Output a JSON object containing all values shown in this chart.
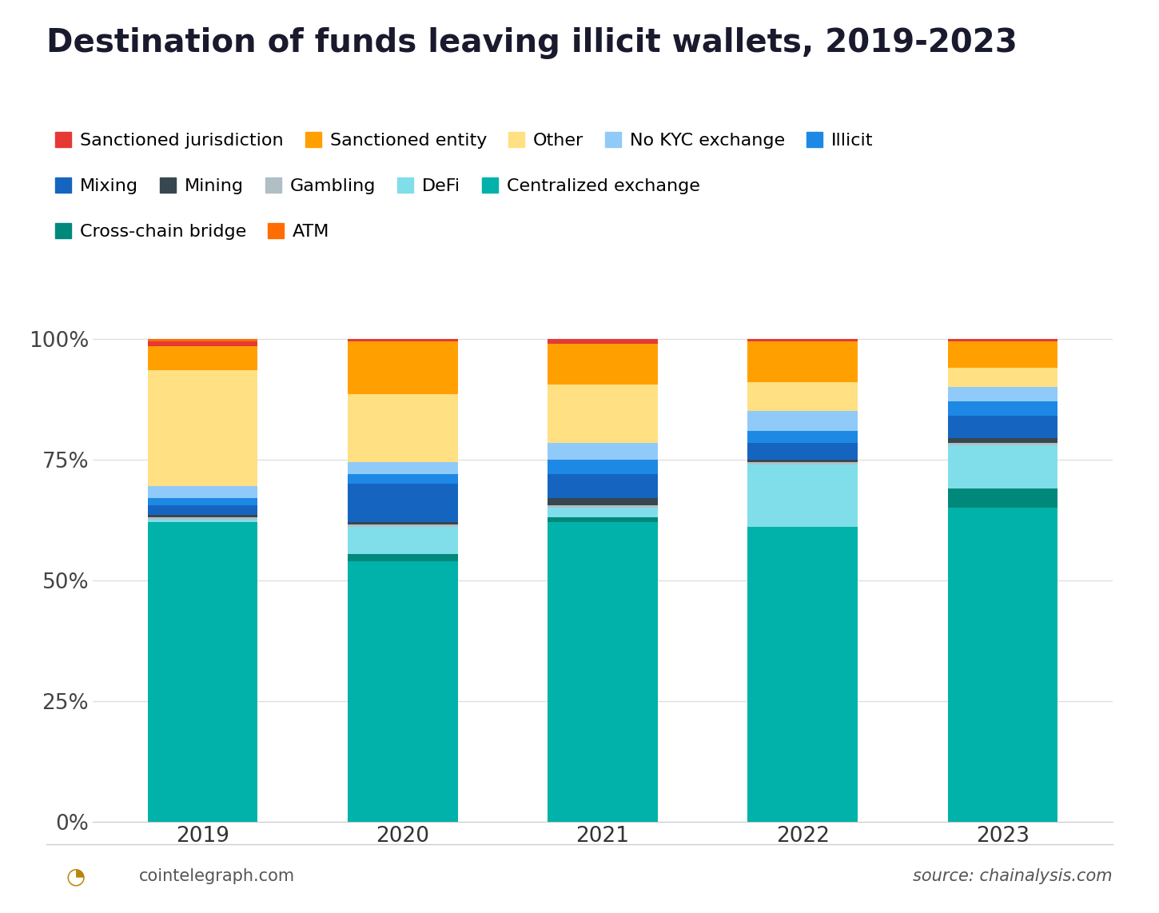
{
  "title": "Destination of funds leaving illicit wallets, 2019-2023",
  "years": [
    "2019",
    "2020",
    "2021",
    "2022",
    "2023"
  ],
  "stack_order": [
    "Centralized exchange",
    "Cross-chain bridge",
    "DeFi",
    "Gambling",
    "Mining",
    "Mixing",
    "Illicit",
    "No KYC exchange",
    "Other",
    "Sanctioned entity",
    "Sanctioned jurisdiction",
    "ATM"
  ],
  "colors": {
    "Centralized exchange": "#00B2A9",
    "Cross-chain bridge": "#00897B",
    "DeFi": "#80DEEA",
    "Gambling": "#B0BEC5",
    "Mining": "#37474F",
    "Mixing": "#1565C0",
    "Illicit": "#1E88E5",
    "No KYC exchange": "#90CAF9",
    "Other": "#FFE082",
    "Sanctioned entity": "#FFA000",
    "Sanctioned jurisdiction": "#E53935",
    "ATM": "#FF6D00"
  },
  "data": {
    "Centralized exchange": [
      62.0,
      54.0,
      62.0,
      61.0,
      65.0
    ],
    "Cross-chain bridge": [
      0.0,
      1.5,
      1.0,
      0.0,
      4.0
    ],
    "DeFi": [
      0.5,
      5.5,
      2.0,
      13.0,
      9.0
    ],
    "Gambling": [
      0.5,
      0.5,
      0.5,
      0.5,
      0.5
    ],
    "Mining": [
      0.5,
      0.5,
      1.5,
      0.5,
      1.0
    ],
    "Mixing": [
      2.0,
      8.0,
      5.0,
      3.5,
      4.5
    ],
    "Illicit": [
      1.5,
      2.0,
      3.0,
      2.5,
      3.0
    ],
    "No KYC exchange": [
      2.5,
      2.5,
      3.5,
      4.0,
      3.0
    ],
    "Other": [
      24.0,
      14.0,
      12.0,
      6.0,
      4.0
    ],
    "Sanctioned entity": [
      5.0,
      11.0,
      8.5,
      8.5,
      5.5
    ],
    "Sanctioned jurisdiction": [
      1.0,
      0.5,
      1.0,
      0.5,
      0.5
    ],
    "ATM": [
      0.5,
      0.0,
      0.0,
      0.0,
      0.0
    ]
  },
  "legend_rows": [
    [
      "Sanctioned jurisdiction",
      "Sanctioned entity",
      "Other",
      "No KYC exchange",
      "Illicit"
    ],
    [
      "Mixing",
      "Mining",
      "Gambling",
      "DeFi",
      "Centralized exchange"
    ],
    [
      "Cross-chain bridge",
      "ATM"
    ]
  ],
  "footer_left": "cointelegraph.com",
  "footer_right": "source: chainalysis.com",
  "bar_width": 0.55,
  "background_color": "#FFFFFF"
}
